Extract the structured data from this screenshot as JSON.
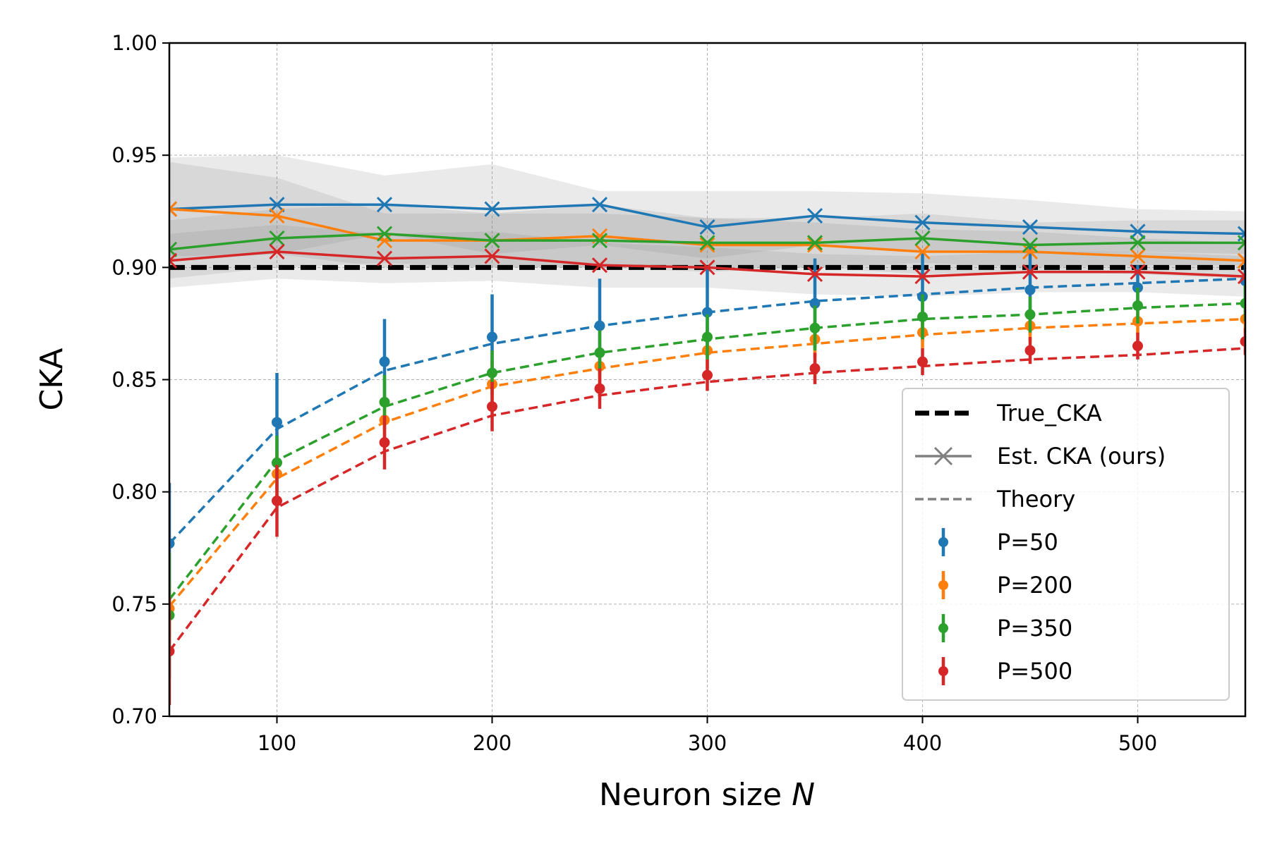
{
  "chart_data": {
    "type": "line",
    "xlabel_text": "Neuron size ",
    "xlabel_var": "N",
    "ylabel": "CKA",
    "xlim": [
      50,
      550
    ],
    "ylim": [
      0.7,
      1.0
    ],
    "xticks": [
      100,
      200,
      300,
      400,
      500
    ],
    "xtick_labels": [
      "100",
      "200",
      "300",
      "400",
      "500"
    ],
    "yticks": [
      0.7,
      0.75,
      0.8,
      0.85,
      0.9,
      0.95,
      1.0
    ],
    "ytick_labels": [
      "0.70",
      "0.75",
      "0.80",
      "0.85",
      "0.90",
      "0.95",
      "1.00"
    ],
    "grid": true,
    "legend_position": "lower right",
    "true_cka": 0.9,
    "x": [
      50,
      100,
      150,
      200,
      250,
      300,
      350,
      400,
      450,
      500,
      550
    ],
    "legend": {
      "true_cka": "True_CKA",
      "est_cka": "Est. CKA (ours)",
      "theory": "Theory",
      "p50": "P=50",
      "p200": "P=200",
      "p350": "P=350",
      "p500": "P=500"
    },
    "series": [
      {
        "name": "P=50",
        "color": "#1f77b4",
        "estimate": [
          0.926,
          0.928,
          0.928,
          0.926,
          0.928,
          0.918,
          0.923,
          0.92,
          0.918,
          0.916,
          0.915
        ],
        "estimate_band": [
          [
            0.903,
            0.949
          ],
          [
            0.906,
            0.95
          ],
          [
            0.915,
            0.941
          ],
          [
            0.906,
            0.946
          ],
          [
            0.91,
            0.934
          ],
          [
            0.904,
            0.934
          ],
          [
            0.91,
            0.934
          ],
          [
            0.907,
            0.933
          ],
          [
            0.906,
            0.93
          ],
          [
            0.907,
            0.926
          ],
          [
            0.906,
            0.925
          ]
        ],
        "measured": [
          0.777,
          0.831,
          0.858,
          0.869,
          0.874,
          0.88,
          0.884,
          0.887,
          0.89,
          0.891,
          0.894
        ],
        "measured_err": [
          0.027,
          0.022,
          0.019,
          0.019,
          0.021,
          0.02,
          0.02,
          0.02,
          0.02,
          0.01,
          0.008
        ],
        "theory": [
          0.777,
          0.828,
          0.854,
          0.866,
          0.874,
          0.88,
          0.885,
          0.888,
          0.891,
          0.893,
          0.895
        ]
      },
      {
        "name": "P=200",
        "color": "#ff7f0e",
        "estimate": [
          0.926,
          0.923,
          0.912,
          0.912,
          0.914,
          0.91,
          0.91,
          0.907,
          0.907,
          0.905,
          0.903
        ],
        "estimate_band": [
          [
            0.905,
            0.947
          ],
          [
            0.906,
            0.94
          ],
          [
            0.9,
            0.924
          ],
          [
            0.9,
            0.924
          ],
          [
            0.9,
            0.928
          ],
          [
            0.898,
            0.922
          ],
          [
            0.9,
            0.92
          ],
          [
            0.897,
            0.917
          ],
          [
            0.898,
            0.916
          ],
          [
            0.897,
            0.913
          ],
          [
            0.895,
            0.911
          ]
        ],
        "measured": [
          0.748,
          0.808,
          0.832,
          0.848,
          0.856,
          0.863,
          0.868,
          0.871,
          0.874,
          0.876,
          0.877
        ],
        "measured_err": [
          0.012,
          0.01,
          0.01,
          0.01,
          0.008,
          0.008,
          0.008,
          0.007,
          0.007,
          0.006,
          0.006
        ],
        "theory": [
          0.749,
          0.806,
          0.831,
          0.847,
          0.855,
          0.862,
          0.866,
          0.87,
          0.873,
          0.875,
          0.877
        ]
      },
      {
        "name": "P=350",
        "color": "#2ca02c",
        "estimate": [
          0.908,
          0.913,
          0.915,
          0.912,
          0.912,
          0.911,
          0.911,
          0.913,
          0.91,
          0.911,
          0.911
        ],
        "estimate_band": [
          [
            0.895,
            0.921
          ],
          [
            0.9,
            0.926
          ],
          [
            0.902,
            0.928
          ],
          [
            0.9,
            0.924
          ],
          [
            0.9,
            0.924
          ],
          [
            0.9,
            0.922
          ],
          [
            0.9,
            0.922
          ],
          [
            0.902,
            0.924
          ],
          [
            0.9,
            0.92
          ],
          [
            0.901,
            0.921
          ],
          [
            0.901,
            0.921
          ]
        ],
        "measured": [
          0.745,
          0.813,
          0.84,
          0.853,
          0.862,
          0.869,
          0.873,
          0.878,
          0.879,
          0.883,
          0.884
        ],
        "measured_err": [
          0.028,
          0.012,
          0.012,
          0.01,
          0.01,
          0.01,
          0.01,
          0.01,
          0.008,
          0.008,
          0.008
        ],
        "theory": [
          0.752,
          0.814,
          0.838,
          0.853,
          0.862,
          0.868,
          0.873,
          0.877,
          0.879,
          0.882,
          0.884
        ]
      },
      {
        "name": "P=500",
        "color": "#d62728",
        "estimate": [
          0.903,
          0.907,
          0.904,
          0.905,
          0.901,
          0.9,
          0.897,
          0.896,
          0.898,
          0.898,
          0.896
        ],
        "estimate_band": [
          [
            0.891,
            0.915
          ],
          [
            0.895,
            0.919
          ],
          [
            0.893,
            0.915
          ],
          [
            0.894,
            0.916
          ],
          [
            0.891,
            0.911
          ],
          [
            0.891,
            0.909
          ],
          [
            0.888,
            0.906
          ],
          [
            0.887,
            0.905
          ],
          [
            0.889,
            0.907
          ],
          [
            0.889,
            0.907
          ],
          [
            0.887,
            0.905
          ]
        ],
        "measured": [
          0.729,
          0.796,
          0.822,
          0.838,
          0.846,
          0.852,
          0.855,
          0.858,
          0.863,
          0.865,
          0.867
        ],
        "measured_err": [
          0.024,
          0.016,
          0.012,
          0.011,
          0.009,
          0.007,
          0.007,
          0.006,
          0.006,
          0.006,
          0.006
        ],
        "theory": [
          0.729,
          0.793,
          0.818,
          0.834,
          0.843,
          0.849,
          0.853,
          0.856,
          0.859,
          0.861,
          0.864
        ]
      }
    ]
  }
}
